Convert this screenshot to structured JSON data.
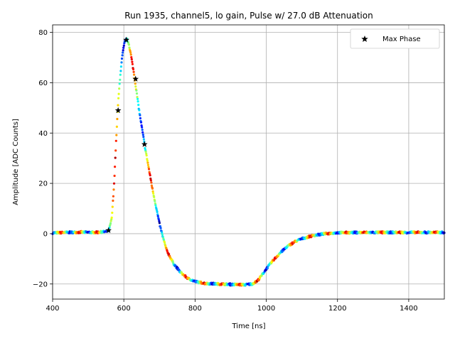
{
  "chart_data": {
    "type": "scatter",
    "title": "Run 1935, channel5, lo gain, Pulse w/ 27.0 dB Attenuation",
    "xlabel": "Time [ns]",
    "ylabel": "Amplitude [ADC Counts]",
    "xlim": [
      400,
      1500
    ],
    "ylim": [
      -26,
      83
    ],
    "xticks": [
      400,
      600,
      800,
      1000,
      1200,
      1400
    ],
    "yticks": [
      -20,
      0,
      20,
      40,
      60,
      80
    ],
    "grid": true,
    "legend": {
      "position": "top-right",
      "entries": [
        "Max Phase"
      ]
    },
    "pulse_shape": [
      [
        400,
        0.3
      ],
      [
        440,
        0.5
      ],
      [
        480,
        0.6
      ],
      [
        520,
        0.5
      ],
      [
        550,
        0.8
      ],
      [
        558,
        1.2
      ],
      [
        566,
        6
      ],
      [
        572,
        18
      ],
      [
        578,
        36
      ],
      [
        584,
        52
      ],
      [
        590,
        63
      ],
      [
        596,
        71
      ],
      [
        602,
        76
      ],
      [
        608,
        77.5
      ],
      [
        614,
        75.5
      ],
      [
        620,
        71
      ],
      [
        628,
        64
      ],
      [
        636,
        56
      ],
      [
        644,
        48
      ],
      [
        652,
        41
      ],
      [
        660,
        34
      ],
      [
        670,
        26
      ],
      [
        680,
        18
      ],
      [
        690,
        11
      ],
      [
        700,
        4
      ],
      [
        710,
        -1.5
      ],
      [
        720,
        -6.5
      ],
      [
        740,
        -12
      ],
      [
        760,
        -15.5
      ],
      [
        780,
        -17.8
      ],
      [
        800,
        -19
      ],
      [
        830,
        -19.8
      ],
      [
        870,
        -20
      ],
      [
        910,
        -20.2
      ],
      [
        940,
        -20.3
      ],
      [
        960,
        -20
      ],
      [
        975,
        -18.8
      ],
      [
        985,
        -17
      ],
      [
        1000,
        -14
      ],
      [
        1020,
        -10.5
      ],
      [
        1040,
        -7.5
      ],
      [
        1060,
        -5
      ],
      [
        1080,
        -3.2
      ],
      [
        1100,
        -2
      ],
      [
        1130,
        -0.8
      ],
      [
        1160,
        -0.1
      ],
      [
        1200,
        0.4
      ],
      [
        1300,
        0.5
      ],
      [
        1400,
        0.5
      ],
      [
        1500,
        0.5
      ]
    ],
    "series": [
      {
        "name": "Max Phase",
        "marker": "star",
        "points": [
          {
            "x": 557,
            "y": 1.3
          },
          {
            "x": 584,
            "y": 49
          },
          {
            "x": 607,
            "y": 77
          },
          {
            "x": 633,
            "y": 61.5
          },
          {
            "x": 658,
            "y": 35.5
          }
        ]
      }
    ],
    "colormap": [
      "#00007f",
      "#0000ff",
      "#0080ff",
      "#00ffff",
      "#80ff80",
      "#ffff00",
      "#ff8000",
      "#ff0000",
      "#7f0000"
    ]
  }
}
